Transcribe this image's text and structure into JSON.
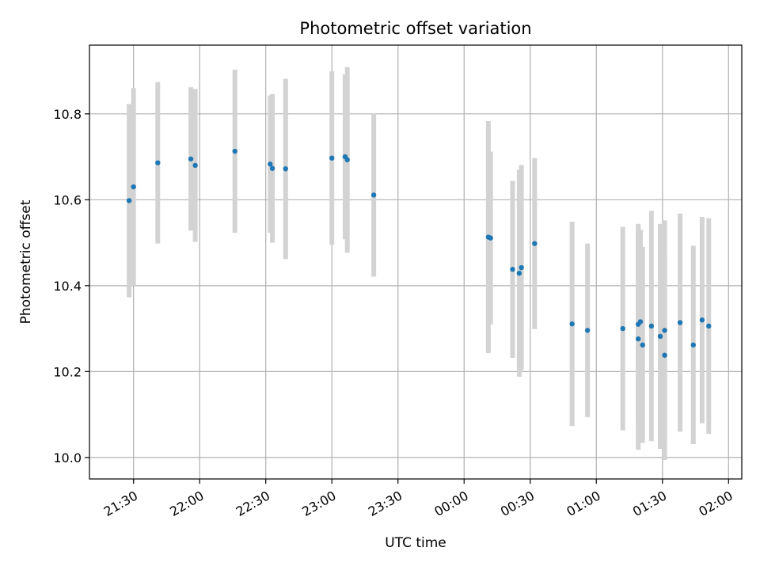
{
  "chart_data": {
    "type": "scatter",
    "title": "Photometric offset variation",
    "xlabel": "UTC time",
    "ylabel": "Photometric offset",
    "x_ticks": [
      "21:30",
      "22:00",
      "22:30",
      "23:00",
      "23:30",
      "00:00",
      "00:30",
      "01:00",
      "01:30",
      "02:00"
    ],
    "y_ticks": [
      "10.0",
      "10.2",
      "10.4",
      "10.6",
      "10.8"
    ],
    "xlim": [
      "21:10",
      "02:06"
    ],
    "ylim": [
      9.95,
      10.96
    ],
    "grid": true,
    "colors": {
      "point": "#1f77b4",
      "errorbar": "#d3d3d3",
      "grid": "#b0b0b0"
    },
    "points": [
      {
        "x": "21:28",
        "y": 10.598,
        "err": 0.225
      },
      {
        "x": "21:30",
        "y": 10.63,
        "err": 0.23
      },
      {
        "x": "21:41",
        "y": 10.686,
        "err": 0.188
      },
      {
        "x": "21:56",
        "y": 10.695,
        "err": 0.167
      },
      {
        "x": "21:58",
        "y": 10.68,
        "err": 0.178
      },
      {
        "x": "22:16",
        "y": 10.713,
        "err": 0.19
      },
      {
        "x": "22:32",
        "y": 10.683,
        "err": 0.16
      },
      {
        "x": "22:33",
        "y": 10.673,
        "err": 0.173
      },
      {
        "x": "22:39",
        "y": 10.672,
        "err": 0.21
      },
      {
        "x": "23:00",
        "y": 10.697,
        "err": 0.202
      },
      {
        "x": "23:06",
        "y": 10.7,
        "err": 0.192
      },
      {
        "x": "23:07",
        "y": 10.693,
        "err": 0.216
      },
      {
        "x": "23:19",
        "y": 10.611,
        "err": 0.19
      },
      {
        "x": "00:11",
        "y": 10.513,
        "err": 0.27
      },
      {
        "x": "00:12",
        "y": 10.511,
        "err": 0.201
      },
      {
        "x": "00:22",
        "y": 10.438,
        "err": 0.206
      },
      {
        "x": "00:25",
        "y": 10.429,
        "err": 0.241
      },
      {
        "x": "00:26",
        "y": 10.442,
        "err": 0.239
      },
      {
        "x": "00:32",
        "y": 10.498,
        "err": 0.199
      },
      {
        "x": "00:49",
        "y": 10.311,
        "err": 0.238
      },
      {
        "x": "00:56",
        "y": 10.296,
        "err": 0.202
      },
      {
        "x": "01:12",
        "y": 10.3,
        "err": 0.237
      },
      {
        "x": "01:19",
        "y": 10.31,
        "err": 0.234
      },
      {
        "x": "01:19",
        "y": 10.276,
        "err": 0.258
      },
      {
        "x": "01:20",
        "y": 10.316,
        "err": 0.214
      },
      {
        "x": "01:21",
        "y": 10.262,
        "err": 0.228
      },
      {
        "x": "01:25",
        "y": 10.306,
        "err": 0.268
      },
      {
        "x": "01:29",
        "y": 10.282,
        "err": 0.262
      },
      {
        "x": "01:31",
        "y": 10.238,
        "err": 0.244
      },
      {
        "x": "01:31",
        "y": 10.296,
        "err": 0.256
      },
      {
        "x": "01:38",
        "y": 10.314,
        "err": 0.254
      },
      {
        "x": "01:44",
        "y": 10.262,
        "err": 0.231
      },
      {
        "x": "01:48",
        "y": 10.32,
        "err": 0.24
      },
      {
        "x": "01:51",
        "y": 10.306,
        "err": 0.251
      }
    ]
  }
}
